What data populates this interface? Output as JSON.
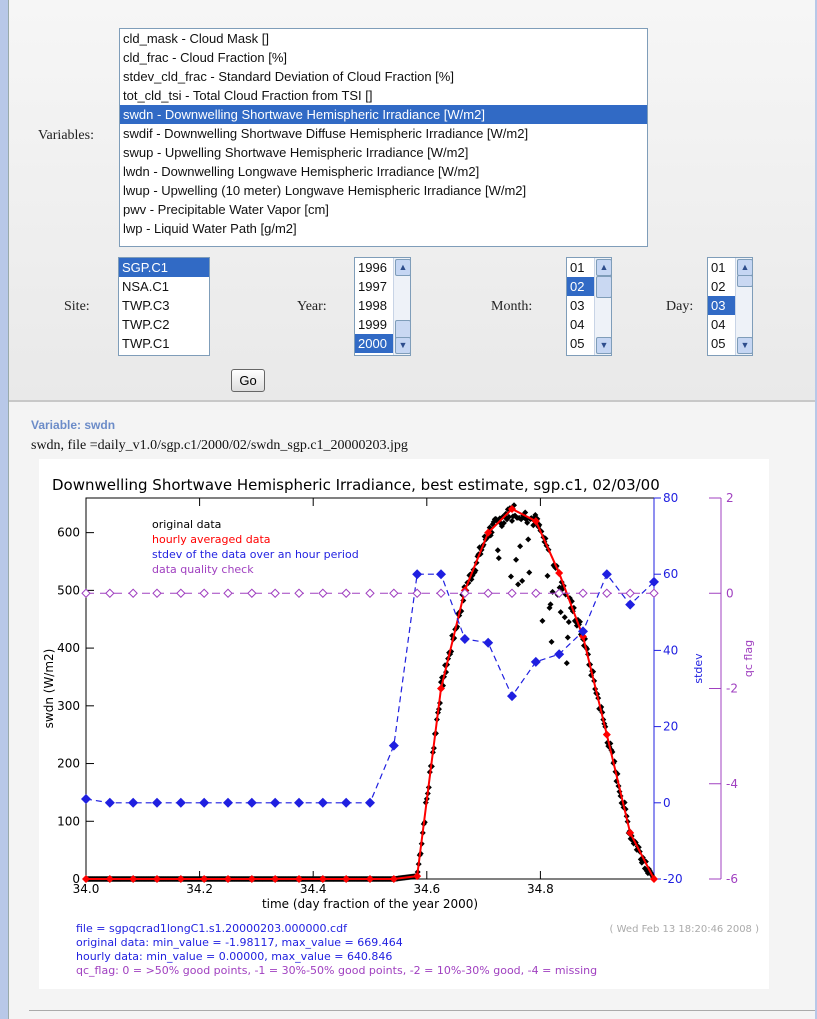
{
  "form": {
    "variables_label": "Variables:",
    "variables": [
      "cld_mask - Cloud Mask []",
      "cld_frac - Cloud Fraction [%]",
      "stdev_cld_frac - Standard Deviation of Cloud Fraction [%]",
      "tot_cld_tsi - Total Cloud Fraction from TSI []",
      "swdn - Downwelling Shortwave Hemispheric Irradiance [W/m2]",
      "swdif - Downwelling Shortwave Diffuse Hemispheric Irradiance [W/m2]",
      "swup - Upwelling Shortwave Hemispheric Irradiance [W/m2]",
      "lwdn - Downwelling Longwave Hemispheric Irradiance [W/m2]",
      "lwup - Upwelling (10 meter) Longwave Hemispheric Irradiance [W/m2]",
      "pwv - Precipitable Water Vapor [cm]",
      "lwp - Liquid Water Path [g/m2]"
    ],
    "selected_variable": "swdn - Downwelling Shortwave Hemispheric Irradiance [W/m2]",
    "site_label": "Site:",
    "sites": [
      "SGP.C1",
      "NSA.C1",
      "TWP.C3",
      "TWP.C2",
      "TWP.C1"
    ],
    "selected_site": "SGP.C1",
    "year_label": "Year:",
    "years": [
      "1996",
      "1997",
      "1998",
      "1999",
      "2000"
    ],
    "selected_year": "2000",
    "month_label": "Month:",
    "months": [
      "01",
      "02",
      "03",
      "04",
      "05"
    ],
    "selected_month": "02",
    "day_label": "Day:",
    "days": [
      "01",
      "02",
      "03",
      "04",
      "05"
    ],
    "selected_day": "03",
    "go_label": "Go"
  },
  "result": {
    "variable_caption": "Variable: swdn",
    "file_line": "swdn,   file =daily_v1.0/sgp.c1/2000/02/swdn_sgp.c1_20000203.jpg"
  },
  "colors": {
    "selection": "#316ac5",
    "original": "#000000",
    "hourly": "#ff0000",
    "stdev": "#1f1fe0",
    "qc": "#a040c0"
  },
  "chart_data": {
    "type": "scatter",
    "title": "Downwelling Shortwave Hemispheric Irradiance, best estimate,   sgp.c1, 02/03/00",
    "xlabel": "time (day fraction of the year 2000)",
    "ylabel": "swdn (W/m2)",
    "y2label": "stdev",
    "y3label": "qc flag",
    "xlim": [
      34.0,
      35.0
    ],
    "ylim": [
      0,
      660
    ],
    "y2lim": [
      -20,
      80
    ],
    "y3lim": [
      -6,
      2
    ],
    "x_ticks": [
      "34.0",
      "34.2",
      "34.4",
      "34.6",
      "34.8"
    ],
    "y_ticks": [
      "0",
      "100",
      "200",
      "300",
      "400",
      "500",
      "600"
    ],
    "y2_ticks": [
      "-20",
      "0",
      "20",
      "40",
      "60",
      "80"
    ],
    "y3_ticks": [
      "-6",
      "-4",
      "-2",
      "0",
      "2"
    ],
    "legend": [
      "original data",
      "hourly averaged data",
      "stdev of the data over an hour period",
      "data quality check"
    ],
    "legend_placement": "top-left",
    "series": [
      {
        "name": "hourly averaged data",
        "axis": "y",
        "x": [
          34.0,
          34.042,
          34.083,
          34.125,
          34.167,
          34.208,
          34.25,
          34.292,
          34.333,
          34.375,
          34.417,
          34.458,
          34.5,
          34.542,
          34.583,
          34.625,
          34.667,
          34.708,
          34.75,
          34.792,
          34.833,
          34.875,
          34.917,
          34.958,
          35.0
        ],
        "values": [
          0,
          0,
          0,
          0,
          0,
          0,
          0,
          0,
          0,
          0,
          0,
          0,
          0,
          0,
          5,
          330,
          500,
          600,
          641,
          620,
          530,
          420,
          250,
          80,
          0
        ]
      },
      {
        "name": "stdev of the data over an hour period",
        "axis": "y2",
        "x": [
          34.0,
          34.042,
          34.083,
          34.125,
          34.167,
          34.208,
          34.25,
          34.292,
          34.333,
          34.375,
          34.417,
          34.458,
          34.5,
          34.542,
          34.583,
          34.625,
          34.667,
          34.708,
          34.75,
          34.792,
          34.833,
          34.875,
          34.917,
          34.958,
          35.0
        ],
        "values": [
          1,
          0,
          0,
          0,
          0,
          0,
          0,
          0,
          0,
          0,
          0,
          0,
          0,
          15,
          60,
          60,
          43,
          42,
          28,
          37,
          39,
          45,
          60,
          52,
          58
        ]
      },
      {
        "name": "data quality check",
        "axis": "y3",
        "x": [
          34.0,
          34.042,
          34.083,
          34.125,
          34.167,
          34.208,
          34.25,
          34.292,
          34.333,
          34.375,
          34.417,
          34.458,
          34.5,
          34.542,
          34.583,
          34.625,
          34.667,
          34.708,
          34.75,
          34.792,
          34.833,
          34.875,
          34.917,
          34.958,
          35.0
        ],
        "values": [
          0,
          0,
          0,
          0,
          0,
          0,
          0,
          0,
          0,
          0,
          0,
          0,
          0,
          0,
          0,
          0,
          0,
          0,
          0,
          0,
          0,
          0,
          0,
          0,
          0
        ]
      }
    ],
    "footer": {
      "file": "file = sgpqcrad1longC1.s1.20000203.000000.cdf",
      "timestamp": "( Wed Feb 13 18:20:46 2008 )",
      "original_line": "original data: min_value =       -1.98117,  max_value =          669.464",
      "hourly_line": "hourly data: min_value =          0.00000,  max_value =          640.846",
      "qc_line": "qc_flag: 0 = >50% good points, -1 = 30%-50% good points, -2 = 10%-30% good, -4 = missing"
    }
  }
}
